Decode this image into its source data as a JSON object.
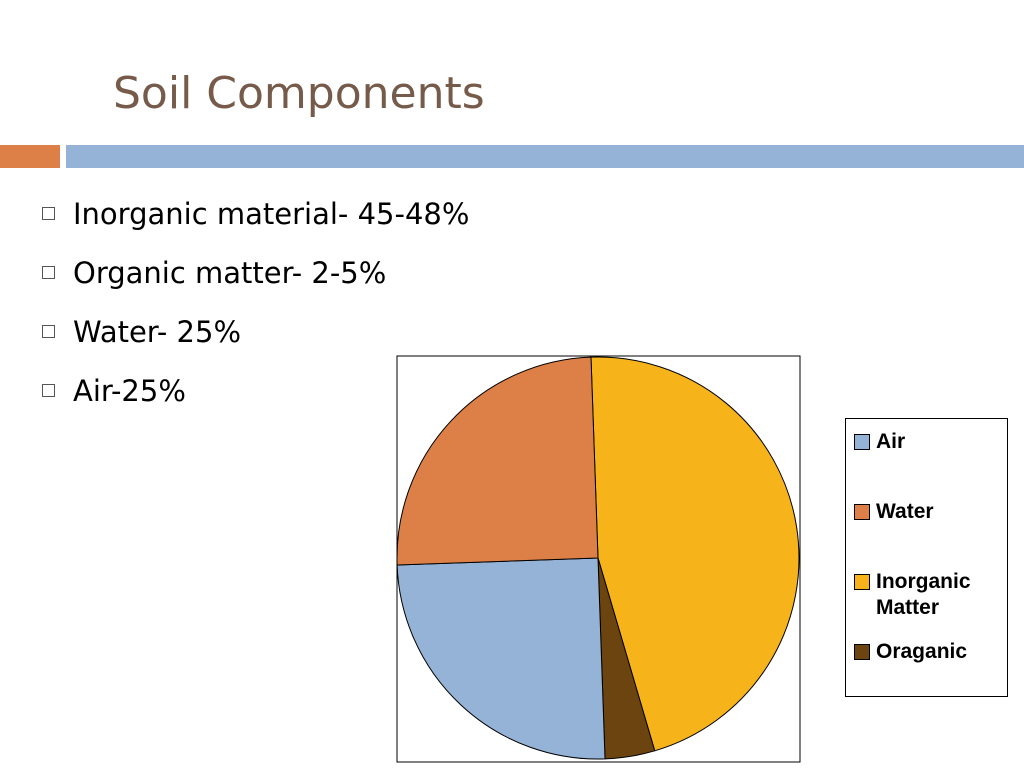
{
  "slide": {
    "title": "Soil Components",
    "bullets": [
      "Inorganic material- 45-48%",
      "Organic matter- 2-5%",
      "Water- 25%",
      "Air-25%"
    ]
  },
  "chart_data": {
    "type": "pie",
    "categories": [
      "Air",
      "Water",
      "Inorganic Matter",
      "Oraganic"
    ],
    "values": [
      25,
      25,
      46,
      4
    ],
    "colors": [
      "#95b3d7",
      "#dd8047",
      "#f6b41a",
      "#6b4410"
    ],
    "legend": "right"
  }
}
